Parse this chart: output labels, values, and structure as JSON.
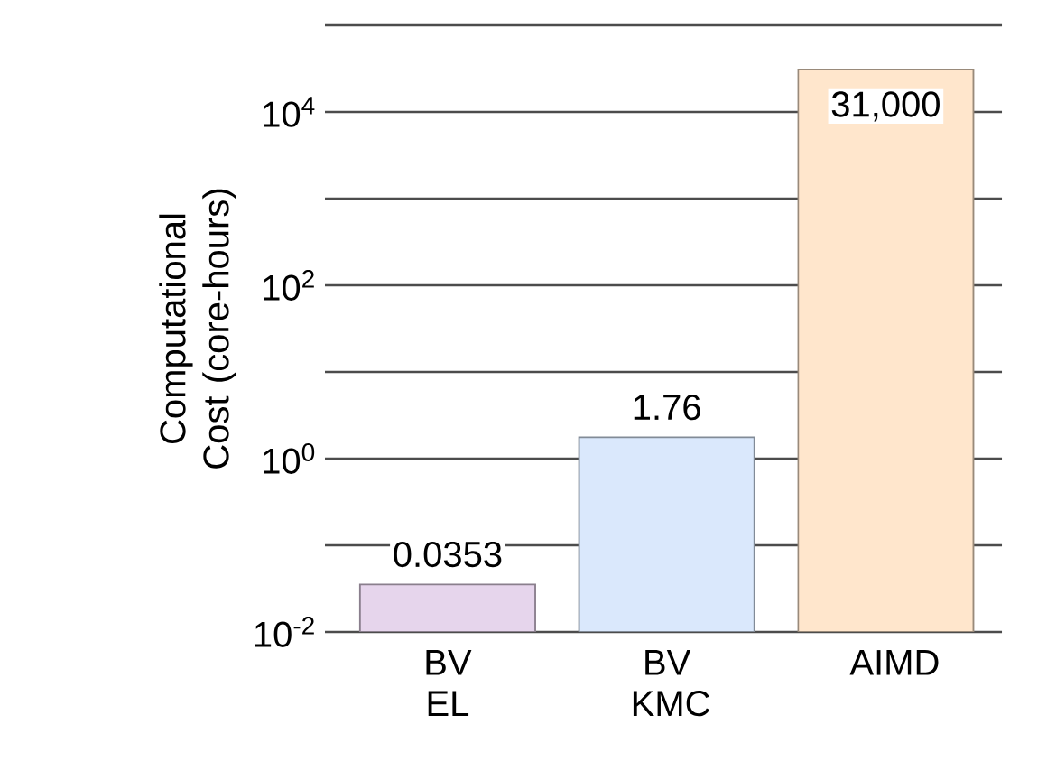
{
  "chart_data": {
    "type": "bar",
    "ylabel": "Computational Cost (core-hours)",
    "categories": [
      "BV EL",
      "BV KMC",
      "AIMD"
    ],
    "values": [
      0.0353,
      1.76,
      31000
    ],
    "value_labels": [
      "0.0353",
      "1.76",
      "31,000"
    ],
    "colors": [
      "#e6d5ec",
      "#dae8fc",
      "#ffe6cc"
    ],
    "log": true,
    "ylim": [
      0.01,
      100000
    ],
    "yticks": [
      {
        "value": 0.01,
        "label": "10$^{-2}$"
      },
      {
        "value": 0.1,
        "label": null
      },
      {
        "value": 1,
        "label": "10$^{0}$"
      },
      {
        "value": 10,
        "label": null
      },
      {
        "value": 100,
        "label": "10$^{2}$"
      },
      {
        "value": 1000,
        "label": null
      },
      {
        "value": 10000,
        "label": "10$^{4}$"
      },
      {
        "value": 100000,
        "label": null
      }
    ],
    "grid": "y"
  }
}
